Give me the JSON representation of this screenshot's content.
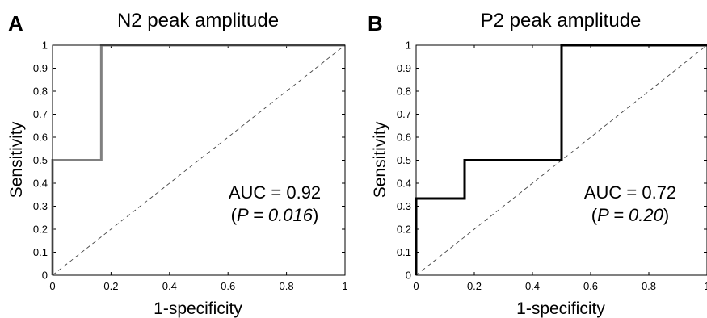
{
  "chart_data": [
    {
      "type": "line",
      "panel_label": "A",
      "title": "N2 peak amplitude",
      "xlabel": "1-specificity",
      "ylabel": "Sensitivity",
      "xlim": [
        0,
        1
      ],
      "ylim": [
        0,
        1
      ],
      "x_ticks": [
        "0",
        "0.2",
        "0.4",
        "0.6",
        "0.8",
        "1"
      ],
      "y_ticks": [
        "0",
        "0.1",
        "0.2",
        "0.3",
        "0.4",
        "0.5",
        "0.6",
        "0.7",
        "0.8",
        "0.9",
        "1"
      ],
      "series": [
        {
          "color": "#808080",
          "x": [
            0,
            0,
            0.1667,
            0.1667,
            1
          ],
          "y": [
            0,
            0.5,
            0.5,
            1,
            1
          ]
        }
      ],
      "reference_line": {
        "x": [
          0,
          1
        ],
        "y": [
          0,
          1
        ],
        "style": "dashed"
      },
      "annotation": {
        "line1": "AUC = 0.92",
        "p_open": "(",
        "p_text": "P = 0.016",
        "p_close": ")"
      },
      "grid": false
    },
    {
      "type": "line",
      "panel_label": "B",
      "title": "P2 peak amplitude",
      "xlabel": "1-specificity",
      "ylabel": "Sensitivity",
      "xlim": [
        0,
        1
      ],
      "ylim": [
        0,
        1
      ],
      "x_ticks": [
        "0",
        "0.2",
        "0.4",
        "0.6",
        "0.8",
        "1"
      ],
      "y_ticks": [
        "0",
        "0.1",
        "0.2",
        "0.3",
        "0.4",
        "0.5",
        "0.6",
        "0.7",
        "0.8",
        "0.9",
        "1"
      ],
      "series": [
        {
          "color": "#000000",
          "x": [
            0,
            0,
            0.1667,
            0.1667,
            0.5,
            0.5,
            1
          ],
          "y": [
            0,
            0.3333,
            0.3333,
            0.5,
            0.5,
            1,
            1
          ]
        }
      ],
      "reference_line": {
        "x": [
          0,
          1
        ],
        "y": [
          0,
          1
        ],
        "style": "dashed"
      },
      "annotation": {
        "line1": "AUC = 0.72",
        "p_open": "(",
        "p_text": "P = 0.20",
        "p_close": ")"
      },
      "grid": false
    }
  ]
}
